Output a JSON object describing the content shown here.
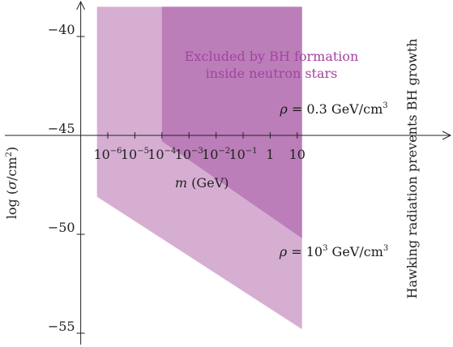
{
  "chart_data": {
    "type": "area",
    "xaxis": {
      "scale": "log",
      "label": "m (GeV)",
      "label_var": "m",
      "label_unit": " (GeV)",
      "ticks": [
        {
          "value": 1e-06,
          "base": "10",
          "exp": "−6"
        },
        {
          "value": 1e-05,
          "base": "10",
          "exp": "−5"
        },
        {
          "value": 0.0001,
          "base": "10",
          "exp": "−4"
        },
        {
          "value": 0.001,
          "base": "10",
          "exp": "−3"
        },
        {
          "value": 0.01,
          "base": "10",
          "exp": "−2"
        },
        {
          "value": 0.1,
          "base": "10",
          "exp": "−1"
        },
        {
          "value": 1,
          "base": "1",
          "exp": ""
        },
        {
          "value": 10,
          "base": "10",
          "exp": ""
        }
      ]
    },
    "yaxis": {
      "label": "log (σ/cm²)",
      "label_pre": "log (",
      "label_var": "σ",
      "label_mid": "/cm",
      "label_exp": "2",
      "label_post": ")",
      "ticks": [
        {
          "value": -40,
          "label": "−40"
        },
        {
          "value": -45,
          "label": "−45"
        },
        {
          "value": -50,
          "label": "−50"
        },
        {
          "value": -55,
          "label": "−55"
        }
      ],
      "crossing_x": 1e-07
    },
    "regions": [
      {
        "name": "ρ = 10³ GeV/cm³",
        "color": "#d6aed2",
        "label": {
          "pre": "ρ",
          "mid": " = 10",
          "exp": "3",
          "post": " GeV/cm",
          "exp2": "3"
        },
        "polygon": [
          [
            4e-07,
            -38.5
          ],
          [
            15,
            -38.5
          ],
          [
            15,
            -54.8
          ],
          [
            4e-07,
            -48.1
          ]
        ]
      },
      {
        "name": "ρ = 0.3 GeV/cm³",
        "color": "#bb7eb9",
        "label": {
          "pre": "ρ",
          "mid": " = 0.3 GeV/cm",
          "exp": "3",
          "post": "",
          "exp2": ""
        },
        "polygon": [
          [
            0.0001,
            -38.5
          ],
          [
            15,
            -38.5
          ],
          [
            15,
            -50.2
          ],
          [
            0.0001,
            -45.3
          ]
        ]
      }
    ],
    "annotations": {
      "excluded_line1": "Excluded by BH formation",
      "excluded_line2": "inside neutron stars",
      "excluded_color": "#a2439f",
      "hawking": "Hawking radiation prevents BH growth"
    }
  }
}
